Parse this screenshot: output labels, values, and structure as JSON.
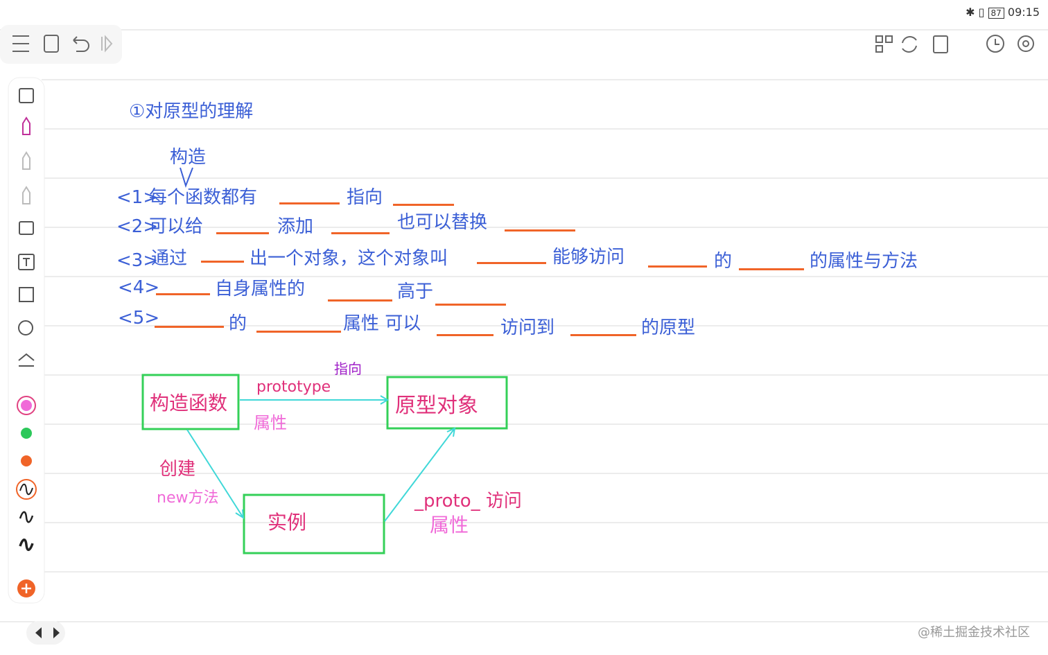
{
  "status_bar": {
    "battery": "87",
    "time": "09:15"
  },
  "note": {
    "title": "①对原型的理解",
    "annotation": "构造",
    "lines": [
      {
        "number": "<1>",
        "parts": [
          "每个函数都有",
          "指向"
        ]
      },
      {
        "number": "<2>",
        "parts": [
          "可以给",
          "添加",
          "也可以替换"
        ]
      },
      {
        "number": "<3>",
        "parts": [
          "通过",
          "出一个对象，这个对象叫",
          "能够访问",
          "的",
          "的属性与方法"
        ]
      },
      {
        "number": "<4>",
        "parts": [
          "自身属性的",
          "高于"
        ]
      },
      {
        "number": "<5>",
        "parts": [
          "的",
          "属性 可以",
          "访问到",
          "的原型"
        ]
      }
    ]
  },
  "diagram": {
    "nodes": [
      "构造函数",
      "原型对象",
      "实例"
    ],
    "labels": {
      "points_to": "指向",
      "prototype": "prototype",
      "prototype_attr": "属性",
      "create": "创建",
      "new_method": "new方法",
      "proto_access": "_proto_ 访问",
      "proto_attr": "属性"
    }
  },
  "watermark": "@稀土掘金技术社区"
}
